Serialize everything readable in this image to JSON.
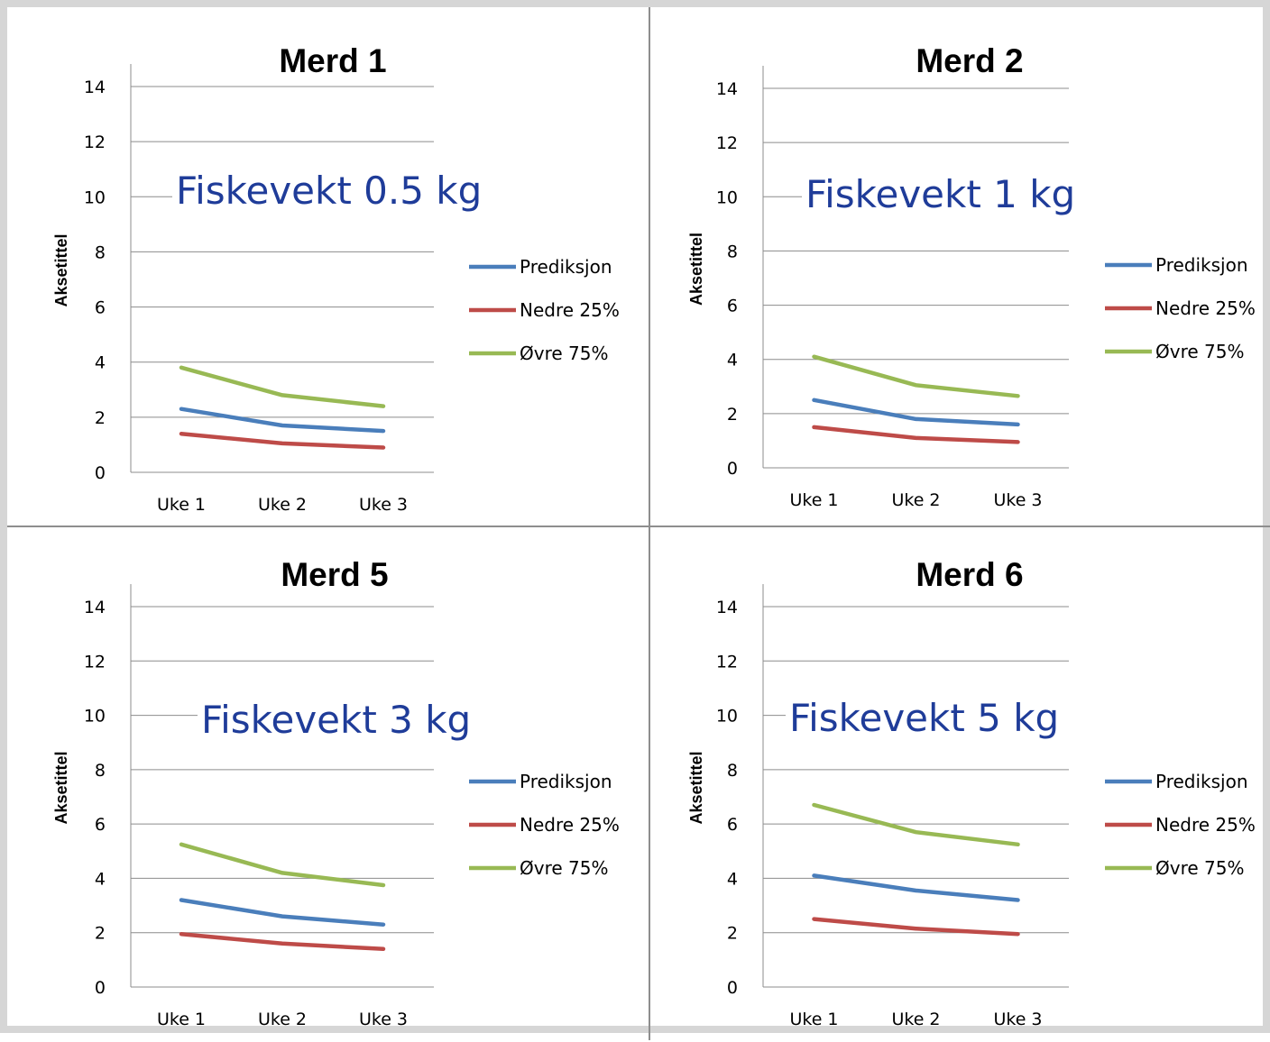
{
  "chart_data": [
    {
      "type": "line",
      "title": "Merd 1",
      "annotation": "Fiskevekt 0.5 kg",
      "ylabel": "Aksetittel",
      "xlabel": "",
      "categories": [
        "Uke 1",
        "Uke 2",
        "Uke 3"
      ],
      "ylim": [
        0,
        14
      ],
      "yticks": [
        0,
        2,
        4,
        6,
        8,
        10,
        12,
        14
      ],
      "grid": true,
      "legend_position": "right",
      "series": [
        {
          "name": "Prediksjon",
          "color": "#4a7ebb",
          "values": [
            2.3,
            1.7,
            1.5
          ]
        },
        {
          "name": "Nedre 25%",
          "color": "#be4b48",
          "values": [
            1.4,
            1.05,
            0.9
          ]
        },
        {
          "name": "Øvre 75%",
          "color": "#98b954",
          "values": [
            3.8,
            2.8,
            2.4
          ]
        }
      ]
    },
    {
      "type": "line",
      "title": "Merd 2",
      "annotation": "Fiskevekt 1 kg",
      "ylabel": "Aksetittel",
      "xlabel": "",
      "categories": [
        "Uke 1",
        "Uke 2",
        "Uke 3"
      ],
      "ylim": [
        0,
        14
      ],
      "yticks": [
        0,
        2,
        4,
        6,
        8,
        10,
        12,
        14
      ],
      "grid": true,
      "legend_position": "right",
      "series": [
        {
          "name": "Prediksjon",
          "color": "#4a7ebb",
          "values": [
            2.5,
            1.8,
            1.6
          ]
        },
        {
          "name": "Nedre 25%",
          "color": "#be4b48",
          "values": [
            1.5,
            1.1,
            0.95
          ]
        },
        {
          "name": "Øvre 75%",
          "color": "#98b954",
          "values": [
            4.1,
            3.05,
            2.65
          ]
        }
      ]
    },
    {
      "type": "line",
      "title": "Merd 5",
      "annotation": "Fiskevekt 3 kg",
      "ylabel": "Aksetittel",
      "xlabel": "",
      "categories": [
        "Uke 1",
        "Uke 2",
        "Uke 3"
      ],
      "ylim": [
        0,
        14
      ],
      "yticks": [
        0,
        2,
        4,
        6,
        8,
        10,
        12,
        14
      ],
      "grid": true,
      "legend_position": "right",
      "series": [
        {
          "name": "Prediksjon",
          "color": "#4a7ebb",
          "values": [
            3.2,
            2.6,
            2.3
          ]
        },
        {
          "name": "Nedre 25%",
          "color": "#be4b48",
          "values": [
            1.95,
            1.6,
            1.4
          ]
        },
        {
          "name": "Øvre 75%",
          "color": "#98b954",
          "values": [
            5.25,
            4.2,
            3.75
          ]
        }
      ]
    },
    {
      "type": "line",
      "title": "Merd 6",
      "annotation": "Fiskevekt 5 kg",
      "ylabel": "Aksetittel",
      "xlabel": "",
      "categories": [
        "Uke 1",
        "Uke 2",
        "Uke 3"
      ],
      "ylim": [
        0,
        14
      ],
      "yticks": [
        0,
        2,
        4,
        6,
        8,
        10,
        12,
        14
      ],
      "grid": true,
      "legend_position": "right",
      "series": [
        {
          "name": "Prediksjon",
          "color": "#4a7ebb",
          "values": [
            4.1,
            3.55,
            3.2
          ]
        },
        {
          "name": "Nedre 25%",
          "color": "#be4b48",
          "values": [
            2.5,
            2.15,
            1.95
          ]
        },
        {
          "name": "Øvre 75%",
          "color": "#98b954",
          "values": [
            6.7,
            5.7,
            5.25
          ]
        }
      ]
    }
  ]
}
